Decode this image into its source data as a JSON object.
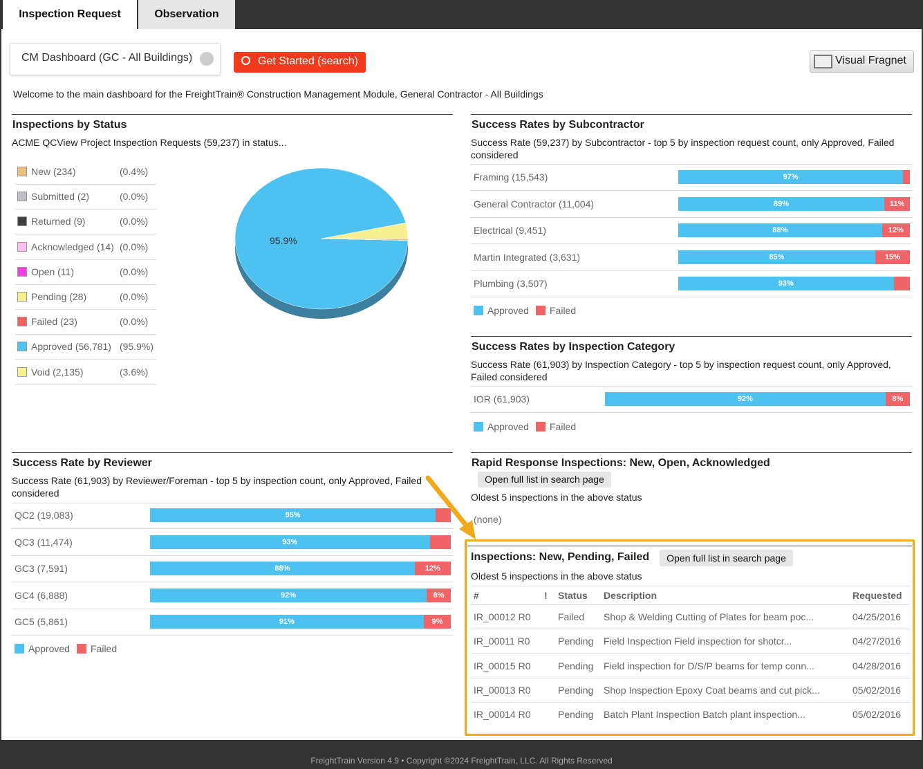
{
  "tabs": [
    "Inspection Request",
    "Observation"
  ],
  "toolbar": {
    "dashboard": "CM Dashboard (GC - All Buildings)",
    "search": "Get Started (search)",
    "fragnet": "Visual Fragnet"
  },
  "welcome": "Welcome to the main dashboard for the FreightTrain® Construction Management Module, General Contractor - All Buildings",
  "colors": {
    "approved": "#4dc1f0",
    "failed": "#f06468"
  },
  "status": {
    "title": "Inspections by Status",
    "subtitle": "ACME QCView Project Inspection Requests (59,237) in status...",
    "pie_label": "95.9%",
    "items": [
      {
        "label": "New (234)",
        "share": 0.4,
        "share_label": "(0.4%)",
        "color": "#e8c07a"
      },
      {
        "label": "Submitted (2)",
        "share": 0.0,
        "share_label": "(0.0%)",
        "color": "#c0bcc8"
      },
      {
        "label": "Returned (9)",
        "share": 0.0,
        "share_label": "(0.0%)",
        "color": "#404040"
      },
      {
        "label": "Acknowledged (14)",
        "share": 0.0,
        "share_label": "(0.0%)",
        "color": "#f9c0f0"
      },
      {
        "label": "Open (11)",
        "share": 0.0,
        "share_label": "(0.0%)",
        "color": "#f040e0"
      },
      {
        "label": "Pending (28)",
        "share": 0.0,
        "share_label": "(0.0%)",
        "color": "#f8f090"
      },
      {
        "label": "Failed (23)",
        "share": 0.0,
        "share_label": "(0.0%)",
        "color": "#f06468"
      },
      {
        "label": "Approved (56,781)",
        "share": 95.9,
        "share_label": "(95.9%)",
        "color": "#4dc1f0"
      },
      {
        "label": "Void (2,135)",
        "share": 3.6,
        "share_label": "(3.6%)",
        "color": "#f8f090"
      }
    ]
  },
  "subcontractor": {
    "title": "Success Rates by Subcontractor",
    "subtitle": "Success Rate (59,237) by Subcontractor - top 5 by inspection request count, only Approved, Failed considered",
    "legend": [
      "Approved",
      "Failed"
    ],
    "rows": [
      {
        "label": "Framing (15,543)",
        "approved": 97,
        "approved_label": "97%",
        "failed": 3
      },
      {
        "label": "General Contractor (11,004)",
        "approved": 89,
        "approved_label": "89%",
        "failed": 11,
        "failed_label": "11%"
      },
      {
        "label": "Electrical (9,451)",
        "approved": 88,
        "approved_label": "88%",
        "failed": 12,
        "failed_label": "12%"
      },
      {
        "label": "Martin Integrated (3,631)",
        "approved": 85,
        "approved_label": "85%",
        "failed": 15,
        "failed_label": "15%"
      },
      {
        "label": "Plumbing (3,507)",
        "approved": 93,
        "approved_label": "93%",
        "failed": 7
      }
    ]
  },
  "category": {
    "title": "Success Rates by Inspection Category",
    "subtitle": "Success Rate (61,903) by Inspection Category - top 5 by inspection request count, only Approved, Failed considered",
    "legend": [
      "Approved",
      "Failed"
    ],
    "rows": [
      {
        "label": "IOR (61,903)",
        "approved": 92,
        "approved_label": "92%",
        "failed": 8,
        "failed_label": "8%"
      }
    ]
  },
  "reviewer": {
    "title": "Success Rate by Reviewer",
    "subtitle": "Success Rate (61,903) by Reviewer/Foreman - top 5 by inspection count, only Approved, Failed considered",
    "legend": [
      "Approved",
      "Failed"
    ],
    "rows": [
      {
        "label": "QC2 (19,083)",
        "approved": 95,
        "approved_label": "95%",
        "failed": 5
      },
      {
        "label": "QC3 (11,474)",
        "approved": 93,
        "approved_label": "93%",
        "failed": 7
      },
      {
        "label": "GC3 (7,591)",
        "approved": 88,
        "approved_label": "88%",
        "failed": 12,
        "failed_label": "12%"
      },
      {
        "label": "GC4 (6,888)",
        "approved": 92,
        "approved_label": "92%",
        "failed": 8,
        "failed_label": "8%"
      },
      {
        "label": "GC5 (5,861)",
        "approved": 91,
        "approved_label": "91%",
        "failed": 9,
        "failed_label": "9%"
      }
    ]
  },
  "rapid": {
    "title": "Rapid Response Inspections: New, Open, Acknowledged",
    "button": "Open full list in search page",
    "note": "Oldest 5 inspections in the above status",
    "empty": "(none)"
  },
  "inspections": {
    "title": "Inspections: New, Pending, Failed",
    "button": "Open full list in search page",
    "note": "Oldest 5 inspections in the above status",
    "columns": [
      "#",
      "!",
      "Status",
      "Description",
      "Requested"
    ],
    "rows": [
      [
        "IR_00012 R0",
        "Failed",
        "Shop & Welding Cutting of Plates for beam poc...",
        "04/25/2016"
      ],
      [
        "IR_00011 R0",
        "Pending",
        "Field Inspection Field inspection for shotcr...",
        "04/27/2016"
      ],
      [
        "IR_00015 R0",
        "Pending",
        "Field inspection for D/S/P beams for temp conn...",
        "04/28/2016"
      ],
      [
        "IR_00013 R0",
        "Pending",
        "Shop Inspection Epoxy Coat beams and cut pick...",
        "05/02/2016"
      ],
      [
        "IR_00014 R0",
        "Pending",
        "Batch Plant Inspection Batch plant inspection...",
        "05/02/2016"
      ]
    ]
  },
  "footer": "FreightTrain Version 4.9 • Copyright ©2024 FreightTrain, LLC. All Rights Reserved"
}
